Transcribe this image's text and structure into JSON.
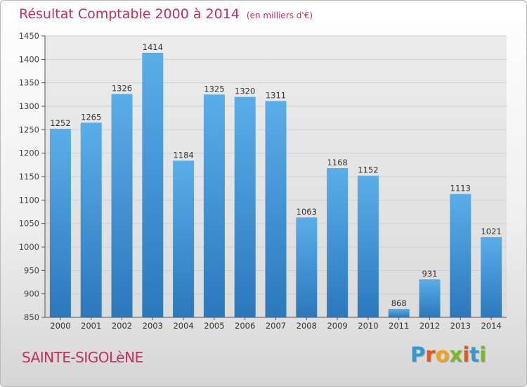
{
  "header": {
    "title": "Résultat Comptable 2000 à 2014",
    "subtitle": "(en milliers d'€)"
  },
  "footer": {
    "place": "SAINTE-SIGOLèNE",
    "logo_text": "Proxiti",
    "logo_colors": [
      "#2e9bd6",
      "#e8561f",
      "#f2a31b",
      "#7ab828",
      "#e8561f",
      "#2e9bd6",
      "#7ab828"
    ]
  },
  "colors": {
    "bar_top": "#5aaee8",
    "bar_bottom": "#2b78bd",
    "title": "#c0305a",
    "grid": "#cfcfcf"
  },
  "chart_data": {
    "type": "bar",
    "title": "Résultat Comptable 2000 à 2014",
    "subtitle": "(en milliers d'€)",
    "categories": [
      "2000",
      "2001",
      "2002",
      "2003",
      "2004",
      "2005",
      "2006",
      "2007",
      "2008",
      "2009",
      "2010",
      "2011",
      "2012",
      "2013",
      "2014"
    ],
    "values": [
      1252,
      1265,
      1326,
      1414,
      1184,
      1325,
      1320,
      1311,
      1063,
      1168,
      1152,
      868,
      931,
      1113,
      1021
    ],
    "ylim": [
      850,
      1450
    ],
    "yticks": [
      850,
      900,
      950,
      1000,
      1050,
      1100,
      1150,
      1200,
      1250,
      1300,
      1350,
      1400,
      1450
    ],
    "grid": true,
    "data_labels": true
  }
}
